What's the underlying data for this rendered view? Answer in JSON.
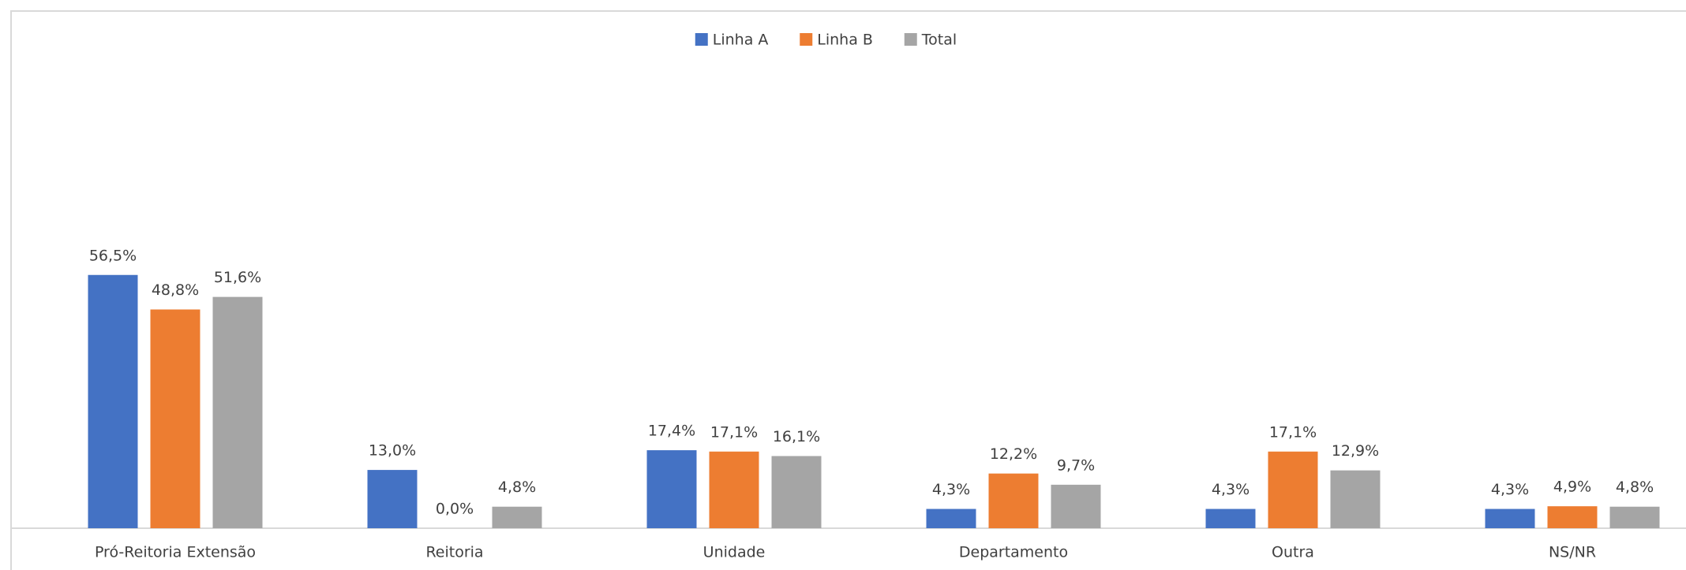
{
  "chart_data": {
    "type": "bar",
    "categories": [
      "Pró-Reitoria Extensão",
      "Reitoria",
      "Unidade",
      "Departamento",
      "Outra",
      "NS/NR"
    ],
    "series": [
      {
        "name": "Linha A",
        "color": "#4472c4",
        "values": [
          56.5,
          13.0,
          17.4,
          4.3,
          4.3,
          4.3
        ],
        "value_labels": [
          "56,5%",
          "13,0%",
          "17,4%",
          "4,3%",
          "4,3%",
          "4,3%"
        ]
      },
      {
        "name": "Linha B",
        "color": "#ed7d31",
        "values": [
          48.8,
          0.0,
          17.1,
          12.2,
          17.1,
          4.9
        ],
        "value_labels": [
          "48,8%",
          "0,0%",
          "17,1%",
          "12,2%",
          "17,1%",
          "4,9%"
        ]
      },
      {
        "name": "Total",
        "color": "#a5a5a5",
        "values": [
          51.6,
          4.8,
          16.1,
          9.7,
          12.9,
          4.8
        ],
        "value_labels": [
          "51,6%",
          "4,8%",
          "16,1%",
          "9,7%",
          "12,9%",
          "4,8%"
        ]
      }
    ],
    "ylim": [
      0,
      70
    ],
    "legend": "top"
  }
}
